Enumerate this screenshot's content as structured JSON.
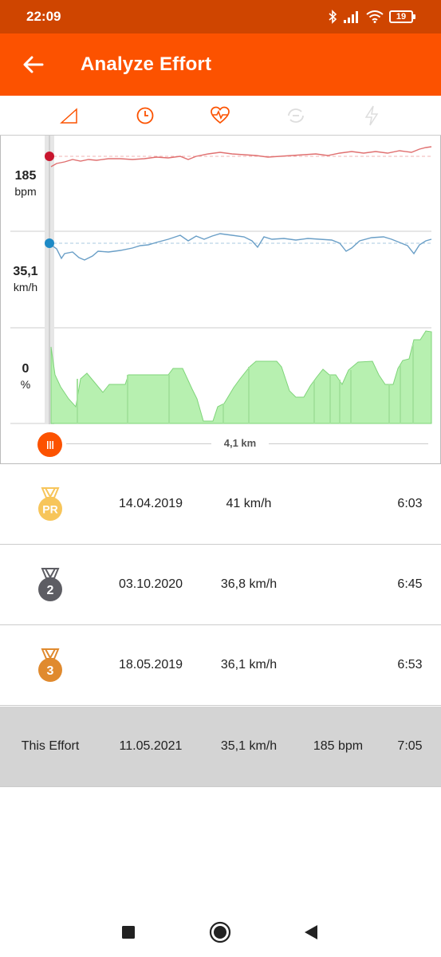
{
  "status_bar": {
    "time": "22:09",
    "battery": "19",
    "icons": [
      "bluetooth-icon",
      "signal-icon",
      "wifi-icon",
      "battery-icon"
    ]
  },
  "app_bar": {
    "title": "Analyze Effort",
    "back_icon": "arrow-left-icon",
    "background": "#fc5200"
  },
  "tabs": [
    {
      "icon": "elevation-icon",
      "active": false
    },
    {
      "icon": "clock-icon",
      "active": true
    },
    {
      "icon": "heart-rate-icon",
      "active": true
    },
    {
      "icon": "cadence-icon",
      "active": false
    },
    {
      "icon": "power-icon",
      "active": false
    }
  ],
  "chart": {
    "heart_rate": {
      "value": "185",
      "unit": "bpm",
      "color": "#e07070"
    },
    "speed": {
      "value": "35,1",
      "unit": "km/h",
      "color": "#6a9fc7"
    },
    "grade": {
      "value": "0",
      "unit": "%",
      "color": "#b7f0b0"
    },
    "slider_distance": "4,1 km"
  },
  "efforts": [
    {
      "medal": "PR",
      "medal_color": "#f7c55a",
      "date": "14.04.2019",
      "speed": "41 km/h",
      "hr": "",
      "time": "6:03"
    },
    {
      "medal": "2",
      "medal_color": "#5d5d63",
      "date": "03.10.2020",
      "speed": "36,8 km/h",
      "hr": "",
      "time": "6:45"
    },
    {
      "medal": "3",
      "medal_color": "#e08a2e",
      "date": "18.05.2019",
      "speed": "36,1 km/h",
      "hr": "",
      "time": "6:53"
    },
    {
      "label": "This Effort",
      "date": "11.05.2021",
      "speed": "35,1 km/h",
      "hr": "185 bpm",
      "time": "7:05"
    }
  ],
  "nav": [
    "recent-apps-icon",
    "home-icon",
    "back-icon"
  ]
}
